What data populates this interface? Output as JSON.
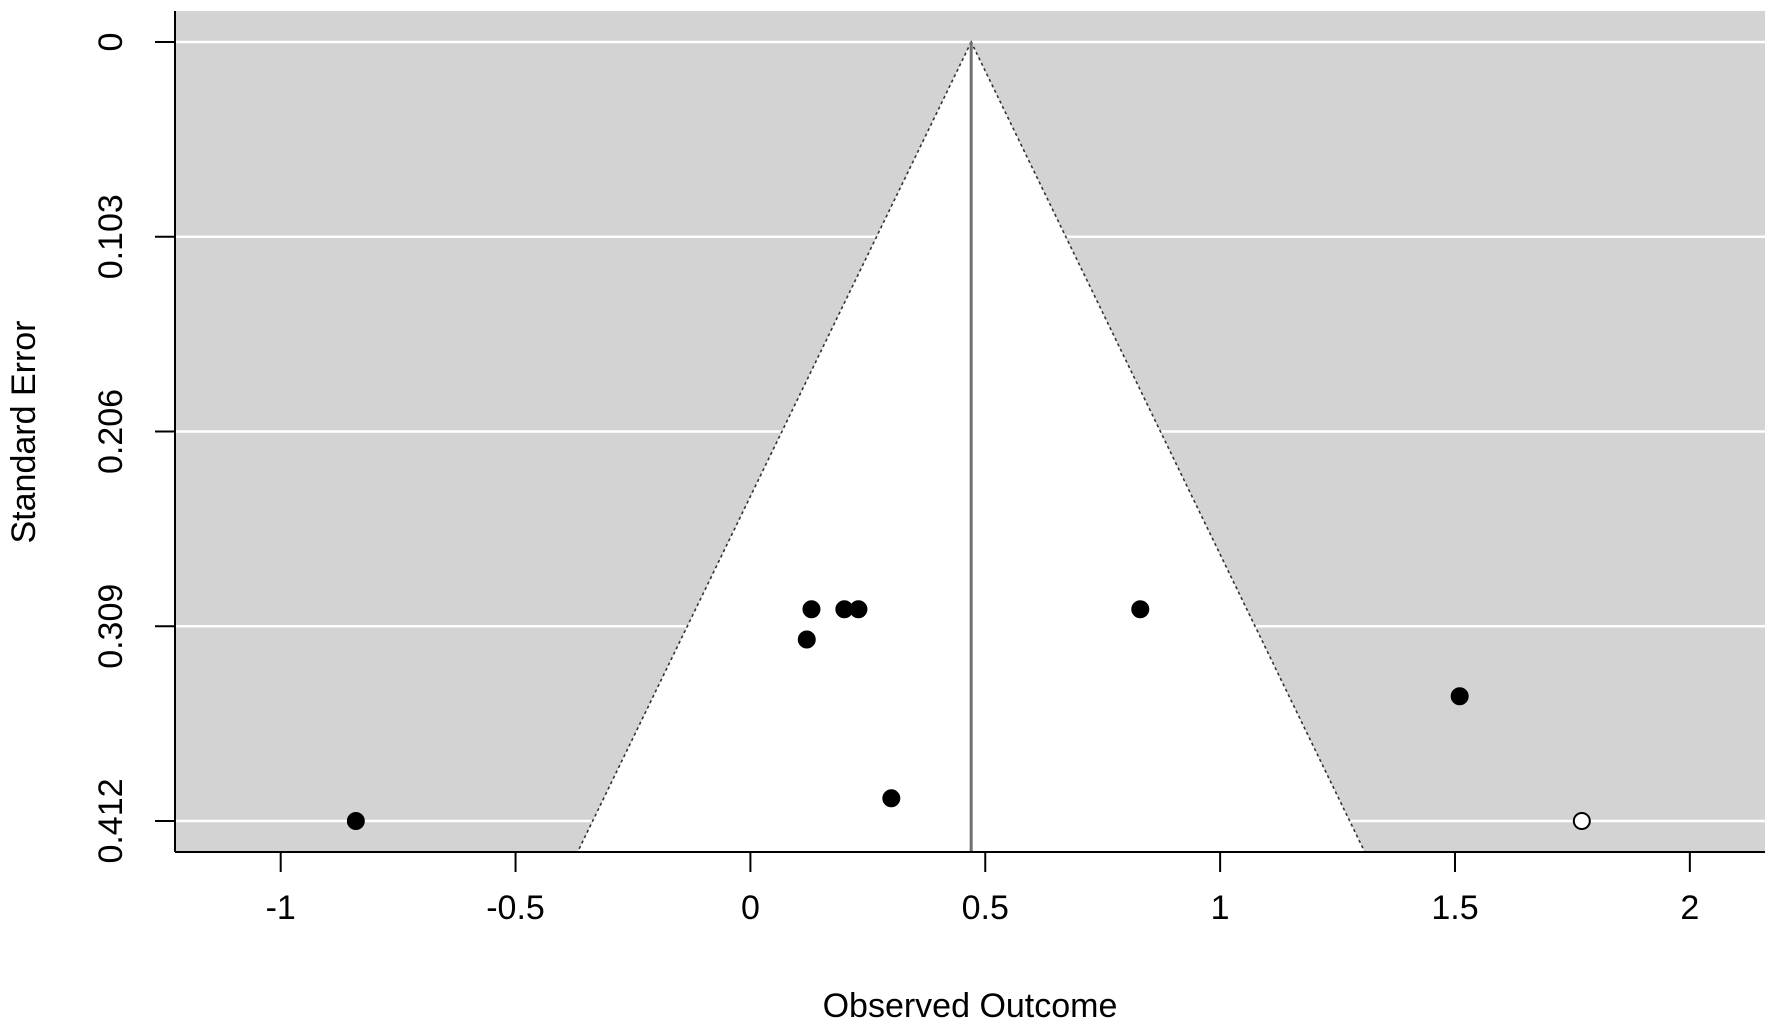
{
  "chart_data": {
    "type": "scatter",
    "subtype": "funnel plot",
    "title": "",
    "xlabel": "Observed Outcome",
    "ylabel": "Standard Error",
    "xlim": [
      -1.225,
      2.16
    ],
    "ylim": [
      0.4275,
      0
    ],
    "y_reversed": true,
    "x_ticks": [
      {
        "value": -1,
        "label": "-1"
      },
      {
        "value": -0.5,
        "label": "-0.5"
      },
      {
        "value": 0,
        "label": "0"
      },
      {
        "value": 0.5,
        "label": "0.5"
      },
      {
        "value": 1,
        "label": "1"
      },
      {
        "value": 1.5,
        "label": "1.5"
      },
      {
        "value": 2,
        "label": "2"
      }
    ],
    "y_ticks": [
      {
        "value": 0,
        "label": "0"
      },
      {
        "value": 0.103,
        "label": "0.103"
      },
      {
        "value": 0.206,
        "label": "0.206"
      },
      {
        "value": 0.309,
        "label": "0.309"
      },
      {
        "value": 0.412,
        "label": "0.412"
      }
    ],
    "grid": "horizontal, white",
    "background_color": "#d3d3d3",
    "funnel_fill_color": "#ffffff",
    "center_estimate": 0.47,
    "funnel_z": 1.96,
    "series": [
      {
        "marker": "filled",
        "color": "#000000",
        "x": [
          0.13,
          0.2,
          0.23,
          0.83,
          0.12,
          1.51,
          0.3,
          -0.84
        ],
        "y": [
          0.3,
          0.3,
          0.3,
          0.3,
          0.316,
          0.346,
          0.4,
          0.412
        ]
      },
      {
        "marker": "open",
        "color": "#000000",
        "x": [
          1.77
        ],
        "y": [
          0.412
        ]
      }
    ]
  }
}
